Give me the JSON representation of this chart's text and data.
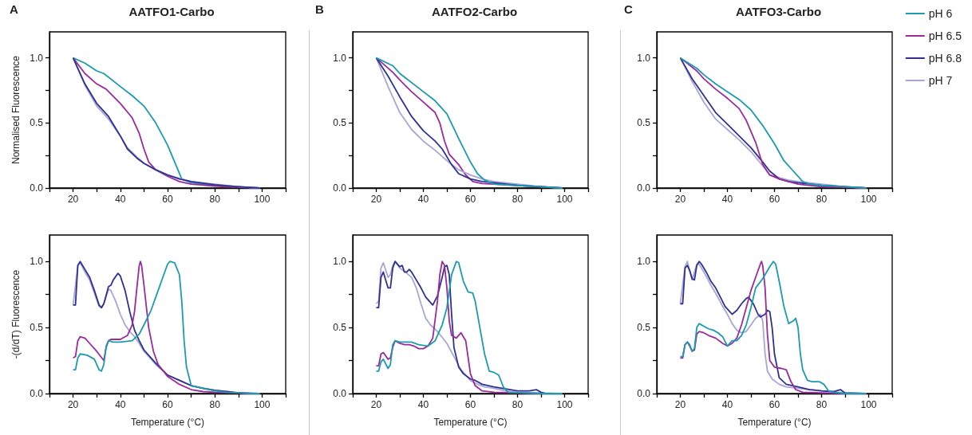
{
  "chart_data": [
    {
      "type": "line",
      "title": "AATFO1-Carbo",
      "ylabel": "Normalised Fluorescence",
      "annotations": [
        "A"
      ],
      "xlim": [
        10,
        110
      ],
      "ylim": [
        0,
        1.2
      ],
      "xticks": [
        {
          "value": 10,
          "label": null
        },
        20,
        {
          "value": 30,
          "label": null
        },
        40,
        {
          "value": 50,
          "label": null
        },
        60,
        {
          "value": 70,
          "label": null
        },
        80,
        {
          "value": 90,
          "label": null
        },
        100,
        {
          "value": 110,
          "label": null
        }
      ],
      "yticks": [
        {
          "value": 0,
          "label": "0.0"
        },
        {
          "value": 0.25,
          "label": null
        },
        {
          "value": 0.5,
          "label": "0.5"
        },
        {
          "value": 0.75,
          "label": null
        },
        {
          "value": 1,
          "label": "1.0"
        }
      ],
      "series": [
        {
          "color": "#1a9bb0",
          "x": [
            20,
            25,
            30,
            33,
            40,
            45,
            50,
            55,
            60,
            63,
            66,
            70,
            80,
            90,
            99
          ],
          "values": [
            1.0,
            0.96,
            0.9,
            0.88,
            0.78,
            0.71,
            0.63,
            0.5,
            0.33,
            0.2,
            0.07,
            0.04,
            0.02,
            0.01,
            0.0
          ]
        },
        {
          "color": "#9b2a9b",
          "x": [
            20,
            25,
            30,
            34,
            40,
            45,
            48,
            50,
            52,
            55,
            60,
            65,
            70,
            80,
            90,
            99
          ],
          "values": [
            1.0,
            0.88,
            0.8,
            0.76,
            0.65,
            0.54,
            0.42,
            0.3,
            0.2,
            0.14,
            0.09,
            0.05,
            0.03,
            0.015,
            0.005,
            0.0
          ]
        },
        {
          "color": "#a8a6d6",
          "x": [
            20,
            25,
            30,
            35,
            40,
            43,
            47,
            50,
            55,
            60,
            65,
            70,
            80,
            90,
            99
          ],
          "values": [
            1.0,
            0.79,
            0.63,
            0.53,
            0.4,
            0.31,
            0.24,
            0.19,
            0.14,
            0.1,
            0.075,
            0.05,
            0.03,
            0.01,
            0.0
          ]
        },
        {
          "color": "#2e3192",
          "x": [
            20,
            25,
            30,
            35,
            40,
            43,
            47,
            50,
            55,
            60,
            65,
            70,
            80,
            90,
            99
          ],
          "values": [
            1.0,
            0.8,
            0.65,
            0.55,
            0.4,
            0.3,
            0.23,
            0.19,
            0.14,
            0.1,
            0.07,
            0.05,
            0.025,
            0.01,
            0.0
          ]
        }
      ]
    },
    {
      "type": "line",
      "title": "AATFO2-Carbo",
      "annotations": [
        "B"
      ],
      "xlim": [
        10,
        110
      ],
      "ylim": [
        0,
        1.2
      ],
      "xticks": [
        {
          "value": 10,
          "label": null
        },
        20,
        {
          "value": 30,
          "label": null
        },
        40,
        {
          "value": 50,
          "label": null
        },
        60,
        {
          "value": 70,
          "label": null
        },
        80,
        {
          "value": 90,
          "label": null
        },
        100,
        {
          "value": 110,
          "label": null
        }
      ],
      "yticks": [
        {
          "value": 0,
          "label": "0.0"
        },
        {
          "value": 0.25,
          "label": null
        },
        {
          "value": 0.5,
          "label": "0.5"
        },
        {
          "value": 0.75,
          "label": null
        },
        {
          "value": 1,
          "label": "1.0"
        }
      ],
      "series": [
        {
          "color": "#9b2a9b",
          "x": [
            20,
            27,
            30,
            35,
            40,
            45,
            47,
            49,
            51,
            55,
            58,
            61,
            65,
            70,
            80,
            90,
            99
          ],
          "values": [
            1.0,
            0.89,
            0.83,
            0.74,
            0.66,
            0.58,
            0.5,
            0.36,
            0.26,
            0.18,
            0.1,
            0.05,
            0.035,
            0.03,
            0.02,
            0.01,
            0.0
          ]
        },
        {
          "color": "#a8a6d6",
          "x": [
            20,
            25,
            30,
            35,
            40,
            45,
            50,
            55,
            60,
            65,
            70,
            80,
            90,
            99
          ],
          "values": [
            1.0,
            0.78,
            0.58,
            0.45,
            0.36,
            0.29,
            0.21,
            0.14,
            0.1,
            0.07,
            0.05,
            0.03,
            0.01,
            0.0
          ]
        },
        {
          "color": "#2e3192",
          "x": [
            20,
            25,
            30,
            35,
            40,
            45,
            48,
            52,
            55,
            60,
            65,
            70,
            80,
            90,
            99
          ],
          "values": [
            1.0,
            0.86,
            0.7,
            0.55,
            0.44,
            0.36,
            0.3,
            0.18,
            0.11,
            0.07,
            0.05,
            0.04,
            0.02,
            0.01,
            0.0
          ]
        },
        {
          "color": "#1a9bb0",
          "x": [
            20,
            27,
            30,
            40,
            45,
            50,
            55,
            60,
            63,
            66,
            70,
            80,
            90,
            99
          ],
          "values": [
            1.0,
            0.94,
            0.88,
            0.74,
            0.67,
            0.57,
            0.38,
            0.2,
            0.11,
            0.06,
            0.03,
            0.02,
            0.01,
            0.0
          ]
        }
      ]
    },
    {
      "type": "line",
      "title": "AATFO3-Carbo",
      "annotations": [
        "C"
      ],
      "legend": "right",
      "xlim": [
        10,
        110
      ],
      "ylim": [
        0,
        1.2
      ],
      "xticks": [
        {
          "value": 10,
          "label": null
        },
        20,
        {
          "value": 30,
          "label": null
        },
        40,
        {
          "value": 50,
          "label": null
        },
        60,
        {
          "value": 70,
          "label": null
        },
        80,
        {
          "value": 90,
          "label": null
        },
        100,
        {
          "value": 110,
          "label": null
        }
      ],
      "yticks": [
        {
          "value": 0,
          "label": "0.0"
        },
        {
          "value": 0.25,
          "label": null
        },
        {
          "value": 0.5,
          "label": "0.5"
        },
        {
          "value": 0.75,
          "label": null
        },
        {
          "value": 1,
          "label": "1.0"
        }
      ],
      "series": [
        {
          "name": "pH 6",
          "color": "#1a9bb0",
          "x": [
            20,
            27,
            30,
            35,
            40,
            45,
            50,
            55,
            60,
            64,
            68,
            72,
            75,
            80,
            90,
            99
          ],
          "values": [
            1.0,
            0.92,
            0.87,
            0.8,
            0.74,
            0.68,
            0.6,
            0.48,
            0.34,
            0.21,
            0.13,
            0.05,
            0.03,
            0.02,
            0.01,
            0.0
          ]
        },
        {
          "name": "pH 6.5",
          "color": "#9b2a9b",
          "x": [
            20,
            27,
            30,
            35,
            40,
            45,
            48,
            52,
            55,
            58,
            62,
            66,
            70,
            80,
            90,
            99
          ],
          "values": [
            1.0,
            0.9,
            0.84,
            0.76,
            0.69,
            0.61,
            0.52,
            0.35,
            0.18,
            0.1,
            0.07,
            0.05,
            0.03,
            0.01,
            0.005,
            0.0
          ]
        },
        {
          "name": "pH 6.8",
          "color": "#2e3192",
          "x": [
            20,
            25,
            30,
            35,
            40,
            45,
            50,
            55,
            58,
            62,
            66,
            70,
            80,
            90,
            99
          ],
          "values": [
            1.0,
            0.84,
            0.71,
            0.58,
            0.49,
            0.4,
            0.31,
            0.2,
            0.13,
            0.07,
            0.05,
            0.04,
            0.02,
            0.01,
            0.0
          ]
        },
        {
          "name": "pH 7",
          "color": "#a8a6d6",
          "x": [
            20,
            25,
            30,
            35,
            40,
            45,
            50,
            55,
            58,
            62,
            66,
            70,
            80,
            90,
            99
          ],
          "values": [
            1.0,
            0.82,
            0.66,
            0.53,
            0.45,
            0.37,
            0.28,
            0.17,
            0.1,
            0.08,
            0.06,
            0.05,
            0.03,
            0.01,
            0.0
          ]
        }
      ]
    },
    {
      "type": "line",
      "xlabel": "Temperature (°C)",
      "ylabel": "-(d/dT) Fluorescence",
      "xlim": [
        10,
        110
      ],
      "ylim": [
        0,
        1.2
      ],
      "xticks": [
        {
          "value": 10,
          "label": null
        },
        20,
        {
          "value": 30,
          "label": null
        },
        40,
        {
          "value": 50,
          "label": null
        },
        60,
        {
          "value": 70,
          "label": null
        },
        80,
        {
          "value": 90,
          "label": null
        },
        100,
        {
          "value": 110,
          "label": null
        }
      ],
      "yticks": [
        {
          "value": 0,
          "label": "0.0"
        },
        {
          "value": 0.25,
          "label": null
        },
        {
          "value": 0.5,
          "label": "0.5"
        },
        {
          "value": 0.75,
          "label": null
        },
        {
          "value": 1,
          "label": "1.0"
        }
      ],
      "series": [
        {
          "color": "#a8a6d6",
          "x": [
            20,
            22,
            23,
            25,
            27,
            29,
            31,
            32,
            33,
            35,
            36,
            38,
            40,
            42,
            44,
            46,
            48,
            50,
            55,
            60,
            65,
            70,
            75,
            80,
            85,
            90,
            99
          ],
          "values": [
            0.67,
            0.97,
            0.99,
            0.92,
            0.86,
            0.76,
            0.66,
            0.65,
            0.68,
            0.79,
            0.78,
            0.7,
            0.6,
            0.52,
            0.47,
            0.43,
            0.38,
            0.32,
            0.22,
            0.14,
            0.1,
            0.06,
            0.04,
            0.025,
            0.015,
            0.005,
            0.0
          ]
        },
        {
          "color": "#2e3192",
          "x": [
            20,
            21,
            22,
            23,
            25,
            27,
            29,
            31,
            32,
            33,
            35,
            36,
            37,
            39,
            40,
            42,
            44,
            46,
            48,
            50,
            55,
            60,
            65,
            70,
            75,
            80,
            85,
            90,
            95,
            99
          ],
          "values": [
            0.67,
            0.67,
            0.97,
            1.0,
            0.94,
            0.88,
            0.78,
            0.67,
            0.65,
            0.68,
            0.81,
            0.82,
            0.86,
            0.91,
            0.89,
            0.78,
            0.62,
            0.48,
            0.4,
            0.33,
            0.23,
            0.14,
            0.1,
            0.06,
            0.04,
            0.025,
            0.015,
            0.005,
            0.0,
            0.0
          ]
        },
        {
          "color": "#9b2a9b",
          "x": [
            20,
            21,
            22,
            23,
            25,
            27,
            30,
            33,
            34,
            35,
            36,
            40,
            43,
            45,
            46,
            47,
            48,
            48.5,
            49,
            50,
            52,
            54,
            56,
            60,
            65,
            70,
            75,
            80,
            90,
            99
          ],
          "values": [
            0.27,
            0.28,
            0.4,
            0.43,
            0.42,
            0.38,
            0.32,
            0.25,
            0.35,
            0.4,
            0.41,
            0.41,
            0.44,
            0.52,
            0.62,
            0.8,
            0.97,
            1.0,
            0.97,
            0.82,
            0.5,
            0.32,
            0.22,
            0.13,
            0.07,
            0.03,
            0.015,
            0.01,
            0.005,
            0.0
          ]
        },
        {
          "color": "#1a9bb0",
          "x": [
            20,
            21,
            22,
            23,
            26,
            29,
            31,
            32,
            33,
            34,
            35,
            37,
            40,
            45,
            48,
            50,
            53,
            56,
            58,
            60,
            61,
            63,
            65,
            66,
            67,
            68,
            70,
            75,
            80,
            85,
            90,
            95,
            99
          ],
          "values": [
            0.18,
            0.18,
            0.27,
            0.3,
            0.29,
            0.26,
            0.18,
            0.17,
            0.22,
            0.36,
            0.4,
            0.39,
            0.39,
            0.4,
            0.45,
            0.52,
            0.63,
            0.78,
            0.88,
            0.98,
            1.0,
            0.99,
            0.9,
            0.7,
            0.4,
            0.2,
            0.06,
            0.04,
            0.02,
            0.01,
            0.005,
            0.0,
            0.0
          ]
        }
      ]
    },
    {
      "type": "line",
      "xlabel": "Temperature (°C)",
      "xlim": [
        10,
        110
      ],
      "ylim": [
        0,
        1.2
      ],
      "xticks": [
        {
          "value": 10,
          "label": null
        },
        20,
        {
          "value": 30,
          "label": null
        },
        40,
        {
          "value": 50,
          "label": null
        },
        60,
        {
          "value": 70,
          "label": null
        },
        80,
        {
          "value": 90,
          "label": null
        },
        100,
        {
          "value": 110,
          "label": null
        }
      ],
      "yticks": [
        {
          "value": 0,
          "label": "0.0"
        },
        {
          "value": 0.25,
          "label": null
        },
        {
          "value": 0.5,
          "label": "0.5"
        },
        {
          "value": 0.75,
          "label": null
        },
        {
          "value": 1,
          "label": "1.0"
        }
      ],
      "series": [
        {
          "color": "#a8a6d6",
          "x": [
            20,
            21,
            22,
            23,
            25,
            26,
            27,
            28,
            30,
            33,
            35,
            37,
            39,
            41,
            43,
            46,
            50,
            53,
            56,
            60,
            63,
            66,
            70,
            75,
            80,
            90,
            99
          ],
          "values": [
            0.68,
            0.7,
            0.95,
            0.99,
            0.88,
            0.9,
            0.97,
            1.0,
            0.95,
            0.91,
            0.88,
            0.8,
            0.68,
            0.57,
            0.52,
            0.47,
            0.38,
            0.28,
            0.18,
            0.1,
            0.07,
            0.05,
            0.04,
            0.02,
            0.01,
            0.005,
            0.0
          ]
        },
        {
          "color": "#2e3192",
          "x": [
            20,
            21,
            22,
            23,
            24,
            25,
            26,
            27,
            28,
            30,
            31,
            32,
            33,
            34,
            35,
            37,
            39,
            41,
            43,
            44,
            46,
            48,
            49,
            50,
            51,
            52,
            53,
            55,
            57,
            60,
            62,
            65,
            70,
            75,
            80,
            85,
            88,
            90,
            92,
            99
          ],
          "values": [
            0.65,
            0.65,
            0.88,
            0.92,
            0.86,
            0.8,
            0.8,
            0.95,
            1.0,
            0.96,
            0.97,
            0.92,
            0.92,
            0.94,
            0.92,
            0.86,
            0.8,
            0.73,
            0.69,
            0.67,
            0.74,
            0.88,
            0.96,
            0.97,
            0.9,
            0.6,
            0.35,
            0.2,
            0.15,
            0.11,
            0.1,
            0.07,
            0.05,
            0.035,
            0.02,
            0.02,
            0.03,
            0.01,
            0.0,
            0.0
          ]
        },
        {
          "color": "#9b2a9b",
          "x": [
            20,
            21,
            22,
            23,
            25,
            26,
            27,
            28,
            30,
            32,
            34,
            36,
            38,
            40,
            42,
            44,
            46,
            47,
            48,
            49,
            50,
            51,
            52,
            54,
            56,
            58,
            60,
            62,
            65,
            70,
            80,
            90,
            99
          ],
          "values": [
            0.21,
            0.21,
            0.3,
            0.31,
            0.26,
            0.27,
            0.35,
            0.4,
            0.38,
            0.37,
            0.37,
            0.36,
            0.34,
            0.34,
            0.36,
            0.42,
            0.7,
            0.9,
            1.0,
            0.97,
            0.8,
            0.55,
            0.44,
            0.42,
            0.46,
            0.4,
            0.15,
            0.06,
            0.02,
            0.01,
            0.005,
            0.0,
            0.0
          ]
        },
        {
          "color": "#1a9bb0",
          "x": [
            20,
            21,
            22,
            23,
            25,
            26,
            27,
            28,
            30,
            33,
            35,
            38,
            42,
            45,
            48,
            50,
            52,
            54,
            55,
            57,
            59,
            61,
            62,
            64,
            66,
            68,
            70,
            72,
            74,
            76,
            80,
            90,
            99
          ],
          "values": [
            0.17,
            0.17,
            0.24,
            0.26,
            0.19,
            0.22,
            0.37,
            0.4,
            0.39,
            0.39,
            0.39,
            0.37,
            0.36,
            0.4,
            0.52,
            0.65,
            0.9,
            1.0,
            0.99,
            0.85,
            0.77,
            0.76,
            0.7,
            0.5,
            0.3,
            0.17,
            0.16,
            0.14,
            0.05,
            0.01,
            0.005,
            0.0,
            0.0
          ]
        }
      ]
    },
    {
      "type": "line",
      "xlabel": "Temperature (°C)",
      "xlim": [
        10,
        110
      ],
      "ylim": [
        0,
        1.2
      ],
      "xticks": [
        {
          "value": 10,
          "label": null
        },
        20,
        {
          "value": 30,
          "label": null
        },
        40,
        {
          "value": 50,
          "label": null
        },
        60,
        {
          "value": 70,
          "label": null
        },
        80,
        {
          "value": 90,
          "label": null
        },
        100,
        {
          "value": 110,
          "label": null
        }
      ],
      "yticks": [
        {
          "value": 0,
          "label": "0.0"
        },
        {
          "value": 0.25,
          "label": null
        },
        {
          "value": 0.5,
          "label": "0.5"
        },
        {
          "value": 0.75,
          "label": null
        },
        {
          "value": 1,
          "label": "1.0"
        }
      ],
      "series": [
        {
          "color": "#a8a6d6",
          "x": [
            20,
            22,
            23,
            24,
            25,
            27,
            28,
            30,
            33,
            35,
            38,
            40,
            42,
            44,
            46,
            48,
            50,
            52,
            54,
            55,
            56,
            57,
            59,
            62,
            65,
            70,
            75,
            80,
            90,
            99
          ],
          "values": [
            0.68,
            0.96,
            1.0,
            0.93,
            0.86,
            0.98,
            0.98,
            0.92,
            0.82,
            0.76,
            0.66,
            0.6,
            0.53,
            0.48,
            0.46,
            0.47,
            0.52,
            0.57,
            0.6,
            0.55,
            0.3,
            0.17,
            0.11,
            0.07,
            0.05,
            0.04,
            0.03,
            0.02,
            0.005,
            0.0
          ]
        },
        {
          "color": "#2e3192",
          "x": [
            20,
            21,
            22,
            23,
            24,
            25,
            26,
            27,
            28,
            29,
            31,
            33,
            35,
            37,
            39,
            41,
            42,
            44,
            46,
            48,
            49,
            51,
            53,
            54,
            56,
            57,
            58,
            59,
            60,
            62,
            65,
            70,
            75,
            80,
            85,
            88,
            90,
            99
          ],
          "values": [
            0.68,
            0.68,
            0.95,
            0.97,
            0.93,
            0.87,
            0.86,
            0.97,
            1.0,
            0.98,
            0.92,
            0.85,
            0.8,
            0.73,
            0.66,
            0.62,
            0.6,
            0.63,
            0.68,
            0.72,
            0.73,
            0.68,
            0.6,
            0.58,
            0.6,
            0.63,
            0.62,
            0.5,
            0.3,
            0.12,
            0.07,
            0.05,
            0.03,
            0.02,
            0.015,
            0.03,
            0.005,
            0.0
          ]
        },
        {
          "color": "#9b2a9b",
          "x": [
            20,
            21,
            22,
            23,
            24,
            25,
            26,
            27,
            28,
            30,
            32,
            35,
            38,
            40,
            42,
            44,
            46,
            48,
            50,
            52,
            54,
            54.5,
            55,
            56,
            57,
            58,
            60,
            63,
            65,
            67,
            69,
            72,
            80,
            90,
            99
          ],
          "values": [
            0.27,
            0.27,
            0.37,
            0.39,
            0.36,
            0.32,
            0.33,
            0.45,
            0.47,
            0.46,
            0.44,
            0.42,
            0.38,
            0.36,
            0.38,
            0.42,
            0.52,
            0.65,
            0.78,
            0.88,
            0.98,
            1.0,
            0.97,
            0.8,
            0.45,
            0.25,
            0.2,
            0.19,
            0.18,
            0.09,
            0.03,
            0.01,
            0.005,
            0.0,
            0.0
          ]
        },
        {
          "color": "#1a9bb0",
          "x": [
            20,
            21,
            22,
            23,
            24,
            25,
            26,
            27,
            28,
            30,
            32,
            34,
            36,
            38,
            40,
            42,
            44,
            46,
            48,
            50,
            52,
            55,
            58,
            59.5,
            60.5,
            62,
            64,
            66,
            68,
            69,
            70,
            71,
            72,
            74,
            76,
            79,
            81,
            83,
            85,
            90,
            99
          ],
          "values": [
            0.28,
            0.28,
            0.37,
            0.39,
            0.37,
            0.32,
            0.34,
            0.5,
            0.53,
            0.51,
            0.49,
            0.48,
            0.46,
            0.43,
            0.36,
            0.4,
            0.4,
            0.44,
            0.52,
            0.65,
            0.8,
            0.87,
            0.96,
            1.0,
            0.98,
            0.85,
            0.66,
            0.53,
            0.55,
            0.57,
            0.5,
            0.3,
            0.18,
            0.1,
            0.09,
            0.09,
            0.07,
            0.02,
            0.01,
            0.0,
            0.0
          ]
        }
      ]
    }
  ]
}
